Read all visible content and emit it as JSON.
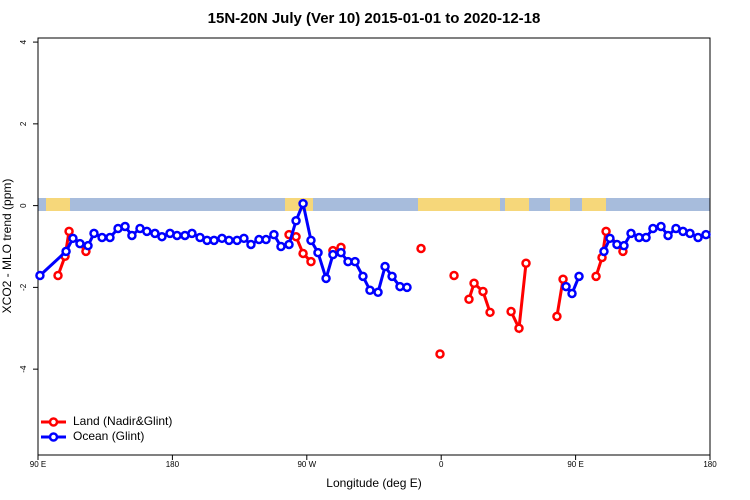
{
  "chart_data": {
    "type": "line",
    "title": "15N-20N July (Ver 10)   2015-01-01 to 2020-12-18",
    "x_label": "Longitude (deg E)",
    "y_label": "XCO2 - MLO trend (ppm)",
    "xlim": [
      90,
      540
    ],
    "ylim": [
      -6.1,
      4.1
    ],
    "xticks": [
      {
        "value": 90,
        "label": "90 E"
      },
      180,
      {
        "value": 270,
        "label": "90 W"
      },
      {
        "value": 360,
        "label": "0"
      },
      {
        "value": 450,
        "label": "90 E"
      },
      {
        "value": 540,
        "label": "180"
      }
    ],
    "yticks": [
      4,
      2,
      0,
      -2,
      -4
    ],
    "legend": "bottom-left",
    "series": [
      {
        "name": "Land (Nadir&Glint)",
        "color": "#ff0000",
        "x": [
          103.4,
          108.1,
          110.8,
          122.1,
          null,
          258.1,
          262.8,
          267.5,
          272.8,
          null,
          287.5,
          292.9,
          null,
          346.5,
          null,
          359.2,
          null,
          368.6,
          null,
          378.6,
          382.0,
          388.0,
          392.7,
          null,
          406.8,
          412.1,
          416.8,
          null,
          437.5,
          441.6,
          null,
          463.7,
          467.7,
          470.4,
          481.7
        ],
        "values": [
          -1.71,
          -1.24,
          -0.63,
          -1.12,
          null,
          -0.71,
          -0.76,
          -1.17,
          -1.37,
          null,
          -1.1,
          -1.02,
          null,
          -1.05,
          null,
          -3.63,
          null,
          -1.71,
          null,
          -2.29,
          -1.9,
          -2.1,
          -2.61,
          null,
          -2.59,
          -3.0,
          -1.41,
          null,
          -2.71,
          -1.8,
          null,
          -1.73,
          -1.27,
          -0.63,
          -1.12
        ]
      },
      {
        "name": "Ocean (Glint)",
        "color": "#0000ff",
        "x": [
          91.3,
          108.8,
          113.4,
          118.1,
          123.5,
          127.5,
          132.9,
          138.2,
          143.6,
          148.3,
          152.9,
          158.3,
          162.9,
          168.3,
          173.0,
          178.4,
          183.1,
          188.4,
          193.1,
          198.5,
          203.2,
          207.9,
          213.2,
          217.9,
          223.3,
          227.9,
          232.6,
          238.0,
          242.7,
          248.0,
          252.7,
          258.1,
          262.8,
          267.5,
          272.8,
          277.5,
          282.9,
          287.5,
          292.9,
          297.6,
          302.3,
          307.6,
          312.3,
          317.7,
          322.4,
          327.1,
          332.4,
          337.1,
          null,
          443.6,
          447.6,
          452.3,
          null,
          469.0,
          473.0,
          477.7,
          482.4,
          487.1,
          492.5,
          497.2,
          501.8,
          507.2,
          511.9,
          517.2,
          521.9,
          526.6,
          532.0,
          537.3
        ],
        "values": [
          -1.71,
          -1.12,
          -0.8,
          -0.93,
          -0.98,
          -0.68,
          -0.78,
          -0.78,
          -0.56,
          -0.51,
          -0.73,
          -0.56,
          -0.63,
          -0.68,
          -0.76,
          -0.68,
          -0.73,
          -0.73,
          -0.68,
          -0.78,
          -0.85,
          -0.85,
          -0.8,
          -0.85,
          -0.85,
          -0.8,
          -0.95,
          -0.83,
          -0.83,
          -0.71,
          -1.0,
          -0.95,
          -0.37,
          0.05,
          -0.85,
          -1.15,
          -1.78,
          -1.2,
          -1.15,
          -1.37,
          -1.37,
          -1.73,
          -2.07,
          -2.12,
          -1.49,
          -1.73,
          -1.98,
          -2.0,
          null,
          -1.98,
          -2.15,
          -1.73,
          null,
          -1.12,
          -0.8,
          -0.95,
          -0.98,
          -0.68,
          -0.78,
          -0.78,
          -0.56,
          -0.51,
          -0.73,
          -0.56,
          -0.63,
          -0.68,
          -0.78,
          -0.71
        ]
      }
    ]
  }
}
